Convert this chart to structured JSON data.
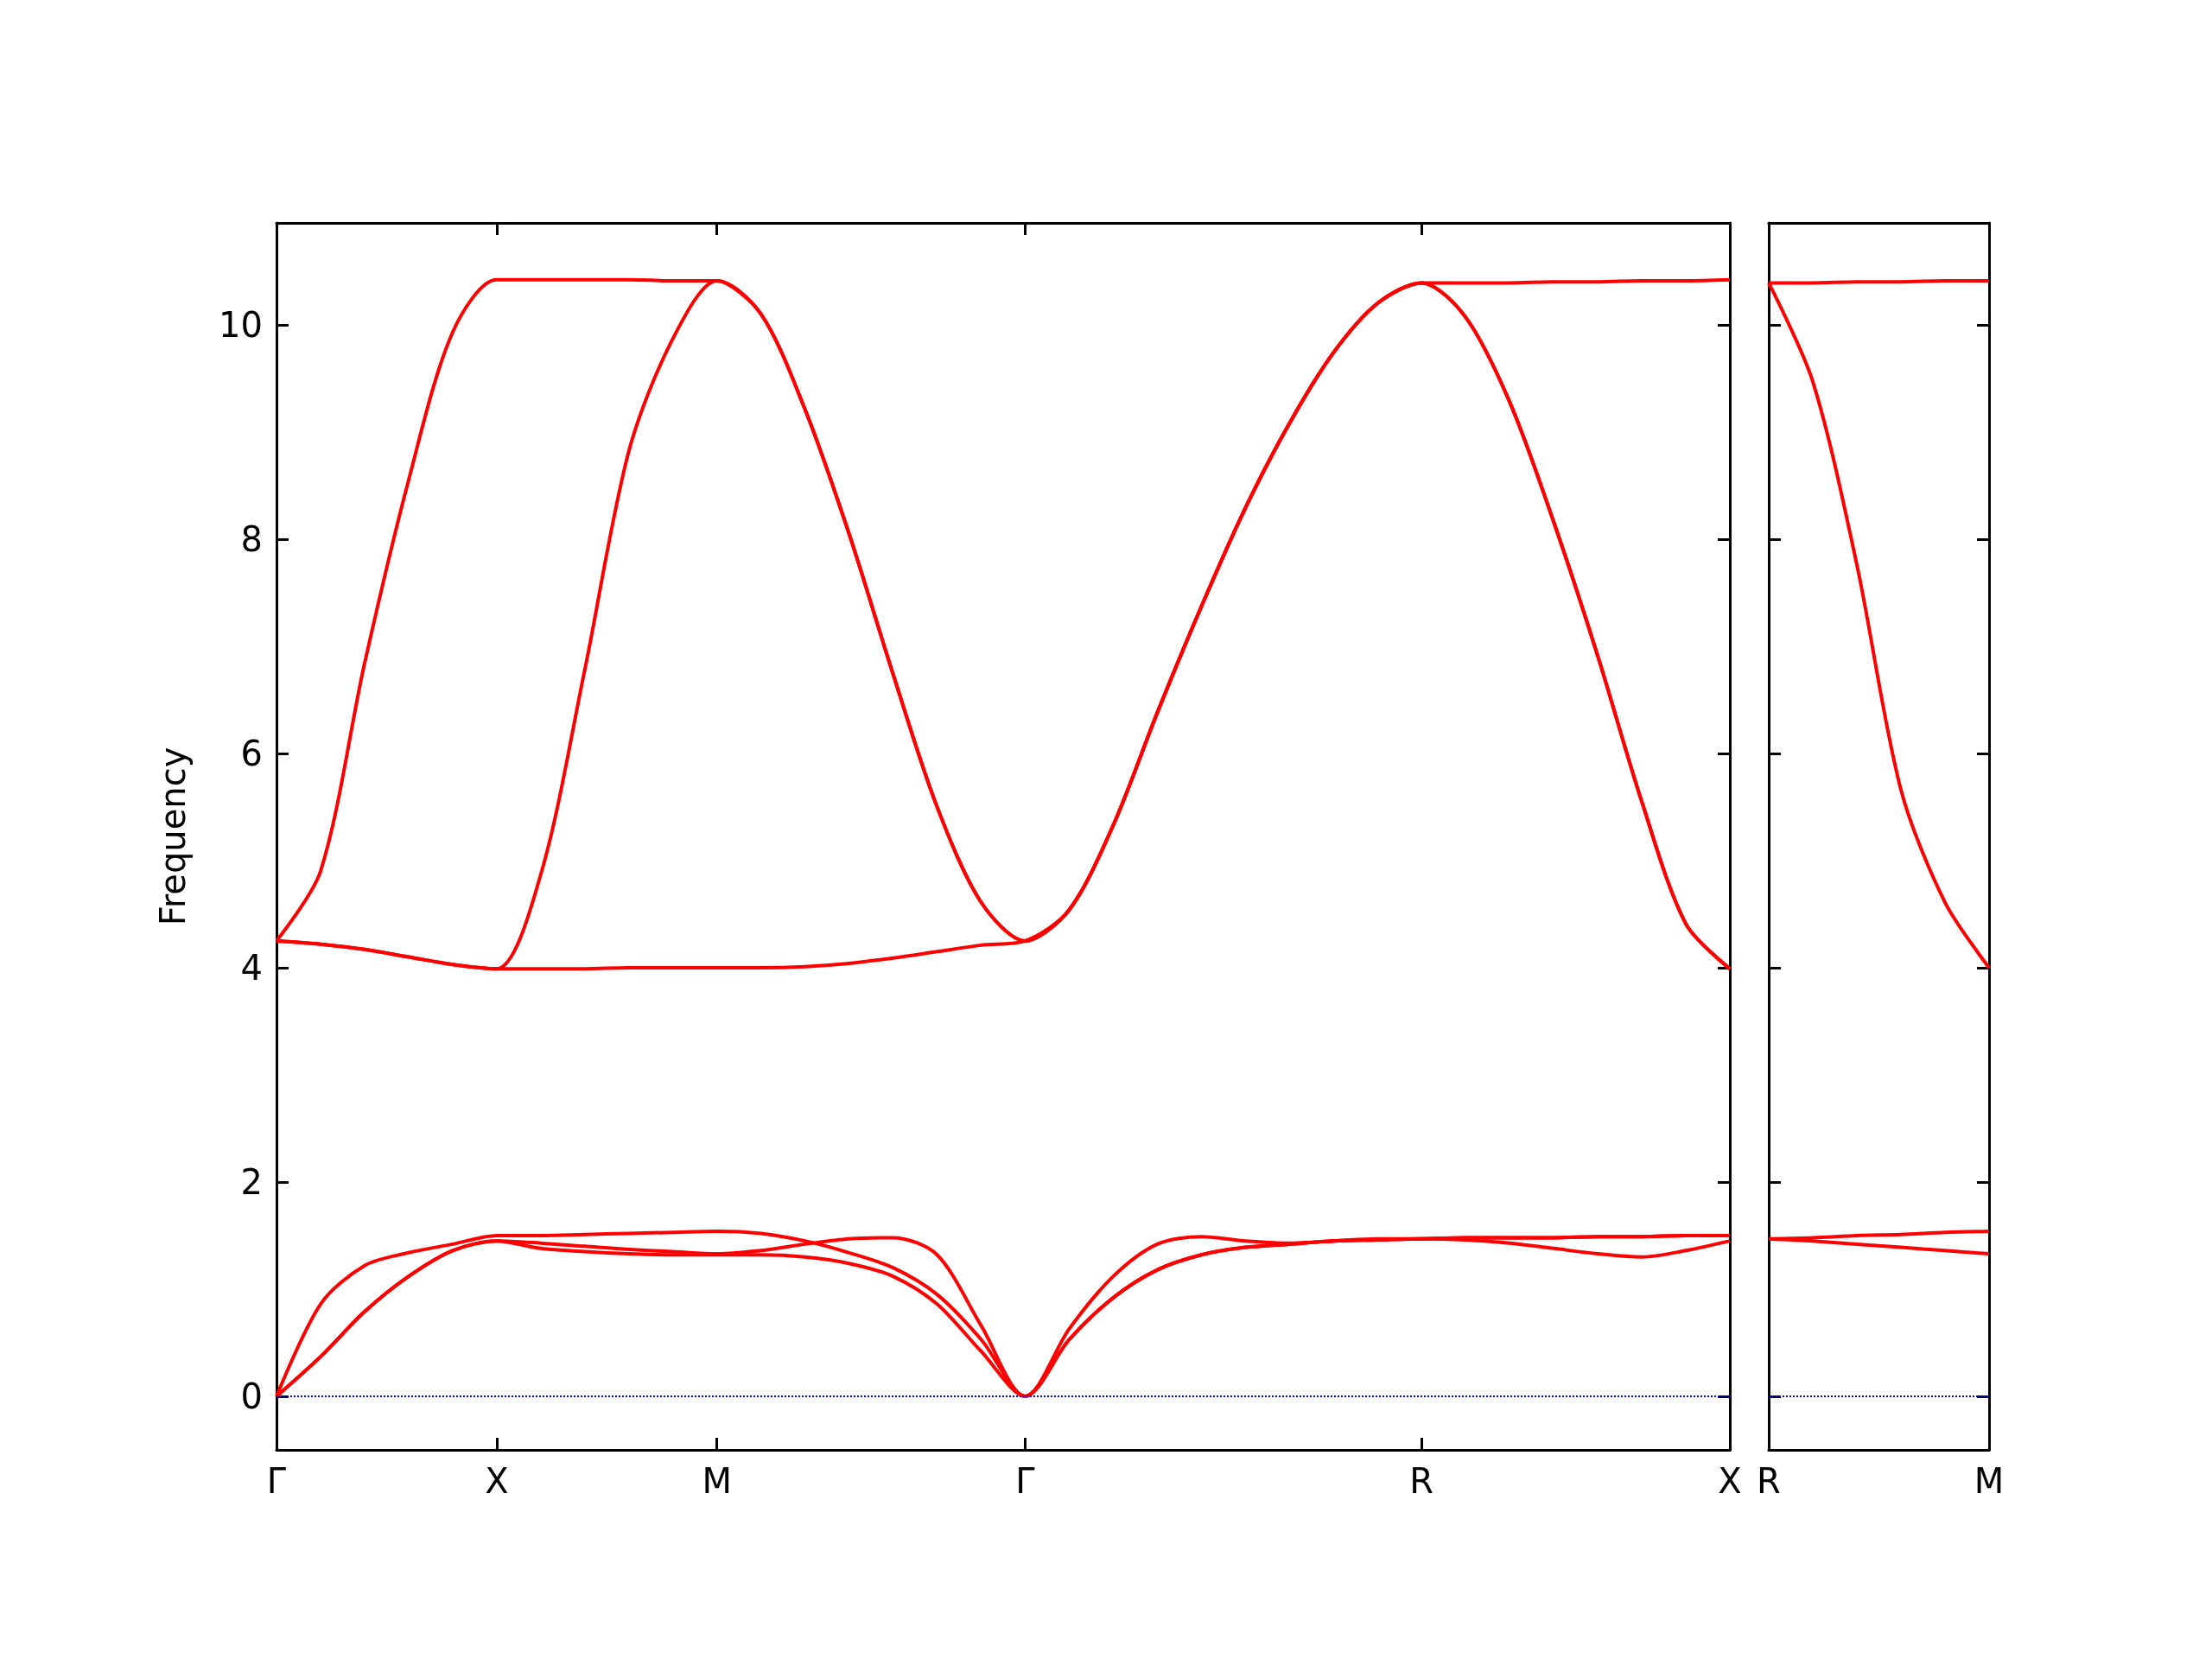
{
  "chart_data": [
    {
      "type": "line",
      "ylabel": "Frequency",
      "categories": [
        "Γ",
        null,
        null,
        null,
        null,
        "X",
        null,
        null,
        null,
        null,
        "M",
        null,
        null,
        null,
        null,
        null,
        null,
        "Γ",
        null,
        null,
        null,
        null,
        null,
        null,
        null,
        null,
        "R",
        null,
        null,
        null,
        null,
        null,
        null,
        "X"
      ],
      "ylim": [
        -0.5,
        10.95
      ],
      "yticks": [
        0,
        2,
        4,
        6,
        8,
        10
      ],
      "ref_lines": [
        {
          "axis": "y",
          "value": 0,
          "color": "#0000ff",
          "line_style": "dotted"
        }
      ],
      "series": [
        {
          "color": "#ff0000",
          "values": [
            4.25,
            4.9,
            6.84,
            8.55,
            9.93,
            10.42,
            10.42,
            10.42,
            10.42,
            10.41,
            10.41,
            10.1,
            9.21,
            8.05,
            6.74,
            5.5,
            4.61,
            4.25,
            4.54,
            5.33,
            6.38,
            7.37,
            8.29,
            9.08,
            9.74,
            10.2,
            10.39,
            10.39,
            10.39,
            10.4,
            10.4,
            10.41,
            10.41,
            10.42
          ]
        },
        {
          "color": "#ff0000",
          "values": [
            4.25,
            4.22,
            4.17,
            4.1,
            4.03,
            3.99,
            4.87,
            6.78,
            8.82,
            9.87,
            10.41,
            10.1,
            9.21,
            8.05,
            6.74,
            5.5,
            4.61,
            4.25,
            4.54,
            5.33,
            6.38,
            7.37,
            8.29,
            9.08,
            9.74,
            10.2,
            10.39,
            10.07,
            9.28,
            8.16,
            6.91,
            5.55,
            4.41,
            3.99
          ]
        },
        {
          "color": "#ff0000",
          "values": [
            4.25,
            4.22,
            4.17,
            4.1,
            4.03,
            3.99,
            3.99,
            3.99,
            4.0,
            4.0,
            4.0,
            4.0,
            4.01,
            4.04,
            4.09,
            4.15,
            4.21,
            4.25,
            4.54,
            5.33,
            6.38,
            7.37,
            8.29,
            9.08,
            9.74,
            10.2,
            10.39,
            10.07,
            9.28,
            8.16,
            6.91,
            5.55,
            4.41,
            3.99
          ]
        },
        {
          "color": "#ff0000",
          "values": [
            0,
            0.86,
            1.22,
            1.34,
            1.42,
            1.5,
            1.5,
            1.51,
            1.52,
            1.53,
            1.54,
            1.52,
            1.45,
            1.34,
            1.2,
            0.95,
            0.53,
            0,
            0.63,
            1.12,
            1.42,
            1.49,
            1.45,
            1.43,
            1.45,
            1.47,
            1.47,
            1.48,
            1.48,
            1.48,
            1.49,
            1.49,
            1.5,
            1.5
          ]
        },
        {
          "color": "#ff0000",
          "values": [
            0,
            0.37,
            0.79,
            1.12,
            1.36,
            1.45,
            1.43,
            1.4,
            1.37,
            1.35,
            1.33,
            1.36,
            1.42,
            1.47,
            1.48,
            1.32,
            0.66,
            0,
            0.53,
            0.92,
            1.18,
            1.32,
            1.39,
            1.42,
            1.45,
            1.46,
            1.47,
            1.46,
            1.43,
            1.38,
            1.33,
            1.3,
            1.36,
            1.45
          ]
        },
        {
          "color": "#ff0000",
          "values": [
            0,
            0.37,
            0.79,
            1.12,
            1.36,
            1.45,
            1.38,
            1.35,
            1.33,
            1.32,
            1.32,
            1.32,
            1.3,
            1.24,
            1.12,
            0.86,
            0.42,
            0,
            0.53,
            0.92,
            1.18,
            1.32,
            1.39,
            1.42,
            1.45,
            1.46,
            1.47,
            1.48,
            1.48,
            1.48,
            1.49,
            1.49,
            1.5,
            1.5
          ]
        }
      ]
    },
    {
      "type": "line",
      "categories": [
        "R",
        null,
        null,
        null,
        null,
        "M"
      ],
      "ylim": [
        -0.5,
        10.95
      ],
      "yticks": [
        0,
        2,
        4,
        6,
        8,
        10
      ],
      "tick_labels": "x",
      "ref_lines": [
        {
          "axis": "y",
          "value": 0,
          "color": "#0000ff",
          "line_style": "dotted"
        }
      ],
      "series": [
        {
          "color": "#ff0000",
          "values": [
            10.39,
            10.39,
            10.4,
            10.4,
            10.41,
            10.41
          ]
        },
        {
          "color": "#ff0000",
          "values": [
            10.39,
            9.47,
            7.76,
            5.66,
            4.61,
            4.0
          ]
        },
        {
          "color": "#ff0000",
          "values": [
            1.47,
            1.48,
            1.5,
            1.51,
            1.53,
            1.54
          ]
        },
        {
          "color": "#ff0000",
          "values": [
            1.47,
            1.45,
            1.42,
            1.39,
            1.36,
            1.33
          ]
        }
      ]
    }
  ]
}
